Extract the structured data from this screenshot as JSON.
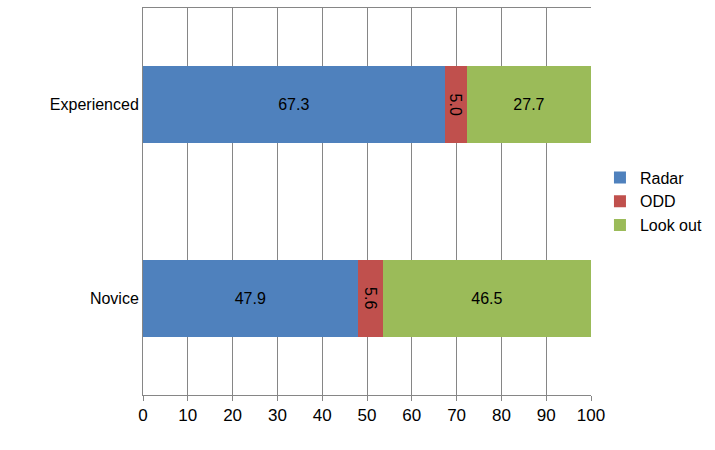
{
  "chart_data": {
    "type": "bar",
    "orientation": "horizontal",
    "stacked": true,
    "categories": [
      "Experienced",
      "Novice"
    ],
    "series": [
      {
        "name": "Radar",
        "color": "#4f81bd",
        "values": [
          67.3,
          47.9
        ]
      },
      {
        "name": "ODD",
        "color": "#c0504d",
        "values": [
          5.0,
          5.6
        ],
        "value_labels": [
          "5.0",
          "5.6"
        ]
      },
      {
        "name": "Look out",
        "color": "#9bbb59",
        "values": [
          27.7,
          46.5
        ]
      }
    ],
    "xlim": [
      0,
      100
    ],
    "xticks": [
      0,
      10,
      20,
      30,
      40,
      50,
      60,
      70,
      80,
      90,
      100
    ],
    "grid": true,
    "legend": "right",
    "data_labels": true
  }
}
